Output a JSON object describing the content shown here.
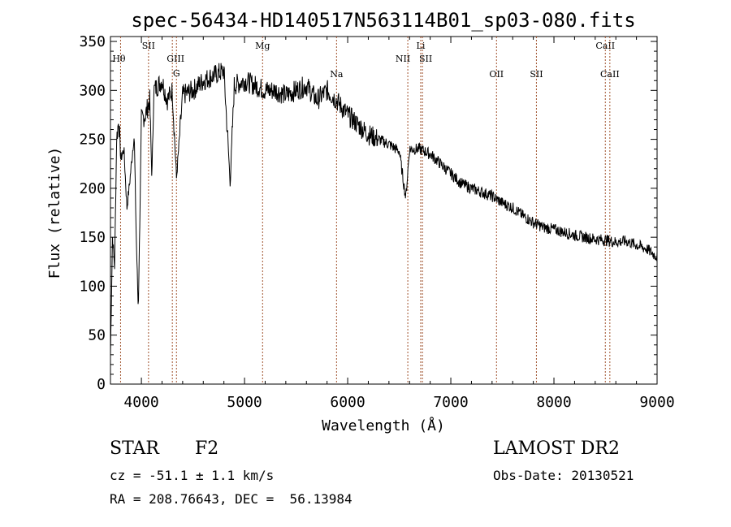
{
  "chart_data": {
    "type": "line",
    "title": "spec-56434-HD140517N563114B01_sp03-080.fits",
    "xlabel": "Wavelength (Å)",
    "ylabel": "Flux (relative)",
    "xlim": [
      3700,
      9000
    ],
    "ylim": [
      0,
      355
    ],
    "xticks": [
      4000,
      5000,
      6000,
      7000,
      8000,
      9000
    ],
    "yticks": [
      0,
      50,
      100,
      150,
      200,
      250,
      300,
      350
    ],
    "series": [
      {
        "name": "spectrum",
        "x": [
          3700,
          3720,
          3740,
          3760,
          3780,
          3800,
          3830,
          3860,
          3890,
          3930,
          3950,
          3970,
          4000,
          4040,
          4080,
          4102,
          4120,
          4160,
          4200,
          4250,
          4300,
          4340,
          4400,
          4500,
          4600,
          4700,
          4800,
          4861,
          4900,
          5000,
          5100,
          5200,
          5300,
          5400,
          5500,
          5600,
          5700,
          5800,
          5890,
          6000,
          6100,
          6200,
          6300,
          6400,
          6500,
          6563,
          6600,
          6700,
          6800,
          6900,
          7000,
          7100,
          7200,
          7300,
          7400,
          7500,
          7600,
          7700,
          7800,
          7900,
          8000,
          8100,
          8200,
          8300,
          8400,
          8500,
          8600,
          8700,
          8800,
          8900,
          9000
        ],
        "y": [
          30,
          150,
          120,
          250,
          270,
          230,
          240,
          180,
          210,
          255,
          150,
          75,
          270,
          275,
          290,
          210,
          300,
          305,
          310,
          290,
          300,
          210,
          295,
          300,
          310,
          315,
          320,
          205,
          305,
          310,
          305,
          300,
          300,
          295,
          300,
          305,
          290,
          300,
          290,
          275,
          265,
          255,
          250,
          245,
          238,
          190,
          240,
          240,
          235,
          225,
          215,
          205,
          200,
          196,
          192,
          185,
          180,
          172,
          165,
          160,
          158,
          155,
          152,
          150,
          148,
          147,
          145,
          146,
          142,
          138,
          130
        ]
      }
    ],
    "lines": [
      {
        "name": "Hθ",
        "x": 3798
      },
      {
        "name": "SII",
        "x": 4069
      },
      {
        "name": "GIII",
        "x": 4300
      },
      {
        "name": "G",
        "x": 4340
      },
      {
        "name": "Mg",
        "x": 5175
      },
      {
        "name": "Na",
        "x": 5892
      },
      {
        "name": "Li",
        "x": 6708
      },
      {
        "name": "NII",
        "x": 6583
      },
      {
        "name": "SII",
        "x": 6725
      },
      {
        "name": "OII",
        "x": 7443
      },
      {
        "name": "SII",
        "x": 7830
      },
      {
        "name": "CaII",
        "x": 8498
      },
      {
        "name": "CaII",
        "x": 8542
      }
    ]
  },
  "info": {
    "object_type": "STAR",
    "subclass": "F2",
    "survey": "LAMOST DR2",
    "cz": "cz = -51.1 ± 1.1 km/s",
    "obs_date": "Obs-Date: 20130521",
    "coords": "RA = 208.76643, DEC =  56.13984"
  }
}
